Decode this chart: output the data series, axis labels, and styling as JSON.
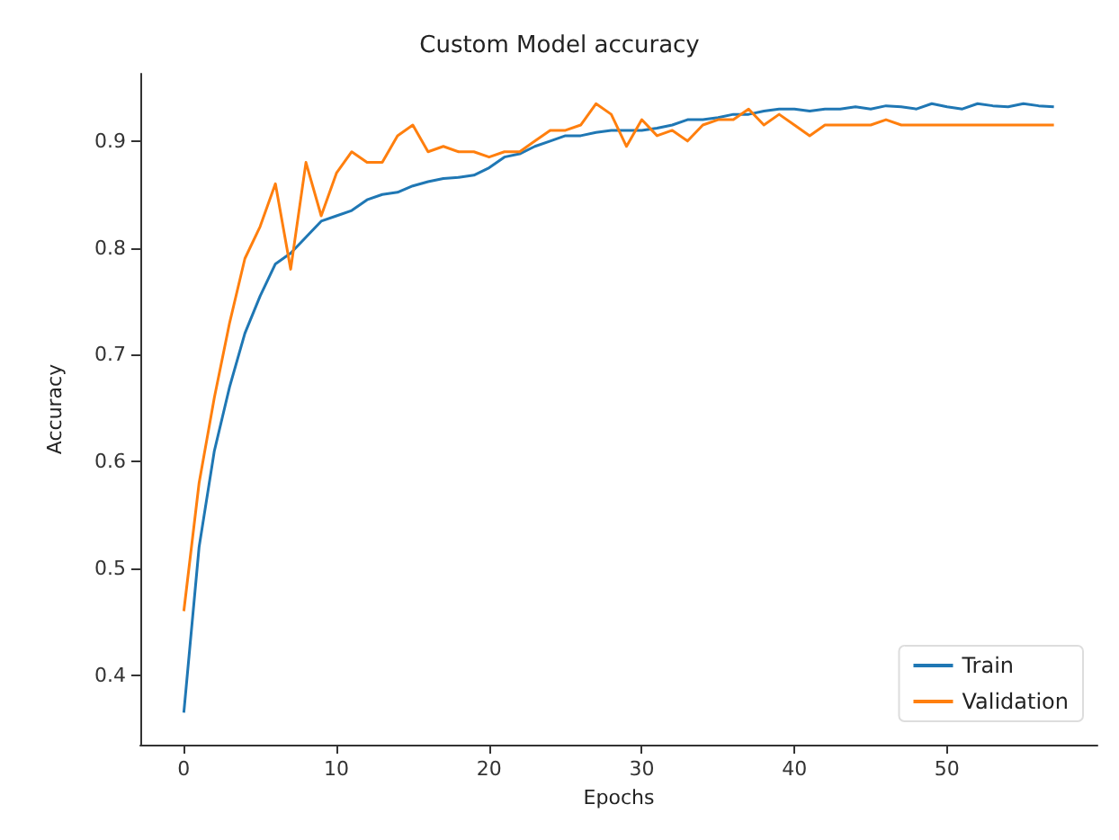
{
  "chart_data": {
    "type": "line",
    "title": "Custom Model accuracy",
    "xlabel": "Epochs",
    "ylabel": "Accuracy",
    "x": [
      0,
      1,
      2,
      3,
      4,
      5,
      6,
      7,
      8,
      9,
      10,
      11,
      12,
      13,
      14,
      15,
      16,
      17,
      18,
      19,
      20,
      21,
      22,
      23,
      24,
      25,
      26,
      27,
      28,
      29,
      30,
      31,
      32,
      33,
      34,
      35,
      36,
      37,
      38,
      39,
      40,
      41,
      42,
      43,
      44,
      45,
      46,
      47,
      48,
      49,
      50,
      51,
      52,
      53,
      54,
      55,
      56,
      57
    ],
    "series": [
      {
        "name": "Train",
        "color": "#1f77b4",
        "values": [
          0.365,
          0.52,
          0.61,
          0.67,
          0.72,
          0.755,
          0.785,
          0.795,
          0.81,
          0.825,
          0.83,
          0.835,
          0.845,
          0.85,
          0.852,
          0.858,
          0.862,
          0.865,
          0.866,
          0.868,
          0.875,
          0.885,
          0.888,
          0.895,
          0.9,
          0.905,
          0.905,
          0.908,
          0.91,
          0.91,
          0.91,
          0.912,
          0.915,
          0.92,
          0.92,
          0.922,
          0.925,
          0.925,
          0.928,
          0.93,
          0.93,
          0.928,
          0.93,
          0.93,
          0.932,
          0.93,
          0.933,
          0.932,
          0.93,
          0.935,
          0.932,
          0.93,
          0.935,
          0.933,
          0.932,
          0.935,
          0.933,
          0.932
        ]
      },
      {
        "name": "Validation",
        "color": "#ff7f0e",
        "values": [
          0.46,
          0.58,
          0.66,
          0.73,
          0.79,
          0.82,
          0.86,
          0.78,
          0.88,
          0.83,
          0.87,
          0.89,
          0.88,
          0.88,
          0.905,
          0.915,
          0.89,
          0.895,
          0.89,
          0.89,
          0.885,
          0.89,
          0.89,
          0.9,
          0.91,
          0.91,
          0.915,
          0.935,
          0.925,
          0.895,
          0.92,
          0.905,
          0.91,
          0.9,
          0.915,
          0.92,
          0.92,
          0.93,
          0.915,
          0.925,
          0.915,
          0.905,
          0.915,
          0.915,
          0.915,
          0.915,
          0.92,
          0.915,
          0.915,
          0.915,
          0.915,
          0.915,
          0.915,
          0.915,
          0.915,
          0.915,
          0.915,
          0.915
        ]
      }
    ],
    "xlim": [
      -2.85,
      59.85
    ],
    "xticks": [
      0,
      10,
      20,
      30,
      40,
      50
    ],
    "ylim": [
      0.335,
      0.963
    ],
    "yticks": [
      0.4,
      0.5,
      0.6,
      0.7,
      0.8,
      0.9
    ],
    "grid": false,
    "legend": "bottom right",
    "marker": "none",
    "line_style": "solid"
  }
}
